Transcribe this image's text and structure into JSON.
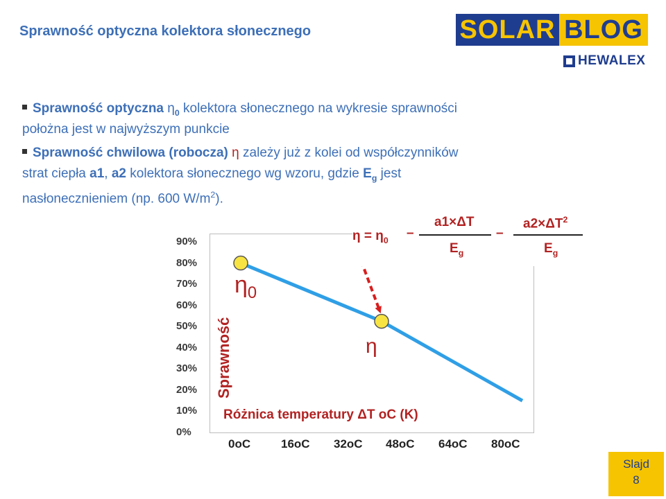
{
  "header": {
    "title": "Sprawność optyczna kolektora słonecznego",
    "logo_solar": "SOLAR",
    "logo_blog": "BLOG",
    "logo_brand": "HEWALEX"
  },
  "bullets": {
    "b1_bold": "Sprawność optyczna",
    "b1_eta": "η",
    "b1_sub": "0",
    "b1_rest": " kolektora słonecznego na wykresie sprawności",
    "b1_line2": "położna jest w najwyższym punkcie",
    "b2_bold": "Sprawność chwilowa (robocza)",
    "b2_eta": "η",
    "b2_rest": " zależy już z kolei od współczynników",
    "b2_line2a": "strat ciepła ",
    "b2_a1": "a1",
    "b2_sep": ", ",
    "b2_a2": "a2",
    "b2_line2b": " kolektora słonecznego wg wzoru, gdzie ",
    "b2_E": "E",
    "b2_g": "g",
    "b2_line2c": " jest",
    "b2_line3a": "nasłonecznieniem (np. 600 W/m",
    "b2_sup": "2",
    "b2_line3b": ")."
  },
  "formula": {
    "lhs": "η = η",
    "lhs_sub": "0",
    "minus": "–",
    "num1": "a1×ΔT",
    "den1": "E",
    "den1_sub": "g",
    "num2": "a2×ΔT",
    "num2_sup": "2",
    "den2": "E",
    "den2_sub": "g"
  },
  "chart_data": {
    "type": "line",
    "ylabel": "Sprawność",
    "xlabel": "Różnica temperatury ΔT oC (K)",
    "y_ticks": [
      "90%",
      "80%",
      "70%",
      "60%",
      "50%",
      "40%",
      "30%",
      "20%",
      "10%",
      "0%"
    ],
    "x_ticks": [
      "0oC",
      "16oC",
      "32oC",
      "48oC",
      "64oC",
      "80oC"
    ],
    "ylim": [
      0,
      90
    ],
    "xlim": [
      0,
      80
    ],
    "series": [
      {
        "x": [
          0,
          40,
          80
        ],
        "y": [
          80,
          52.5,
          15
        ]
      }
    ],
    "points": [
      {
        "label": "η0",
        "x": 0,
        "y": 80
      },
      {
        "label": "η",
        "x": 40,
        "y": 52.5
      }
    ],
    "colors": {
      "line": "#2f9fe6",
      "point": "#f7e443",
      "arrow": "#d81e1e",
      "label": "#b22222"
    }
  },
  "annotations": {
    "eta0": "η",
    "eta0_sub": "0",
    "eta": "η"
  },
  "footer": {
    "slide_label": "Slajd",
    "slide_number": "8"
  }
}
